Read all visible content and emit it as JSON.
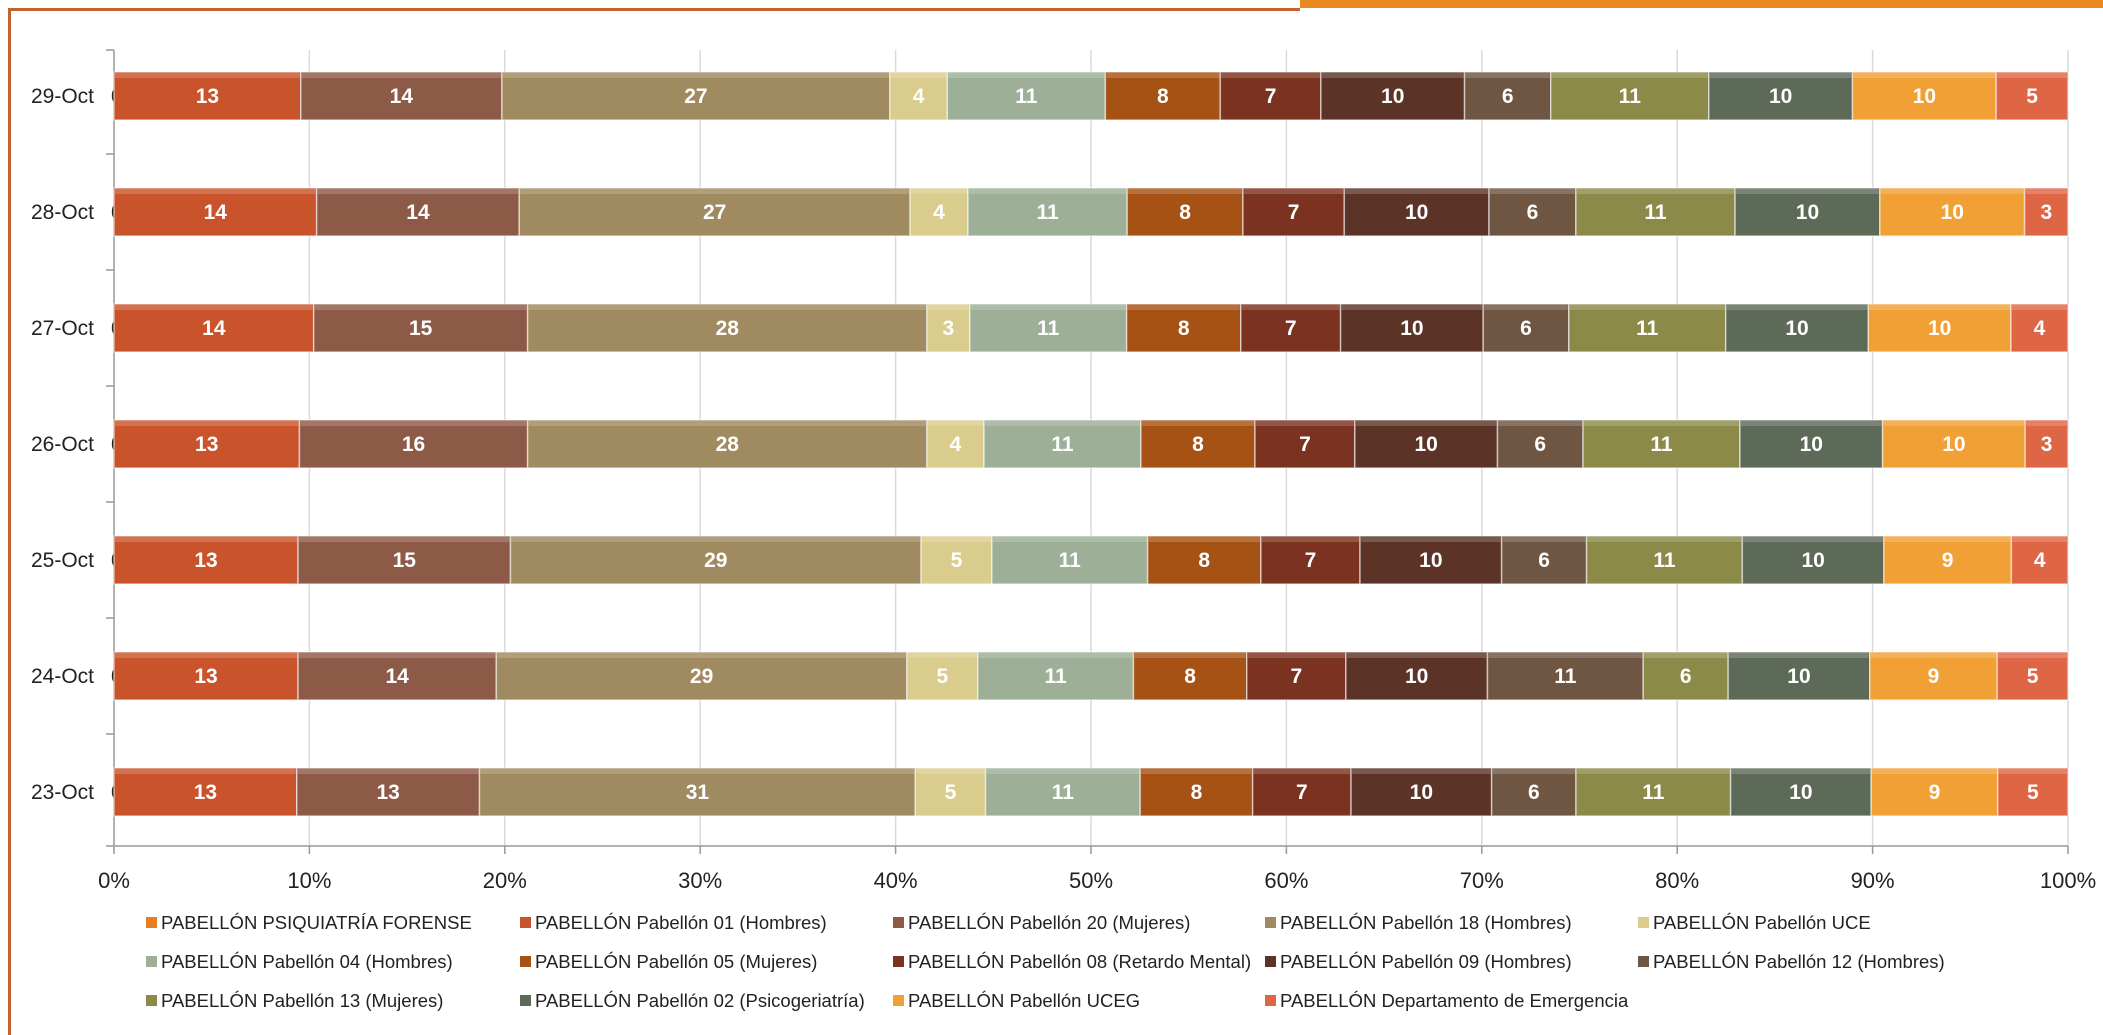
{
  "chart_data": {
    "type": "bar",
    "orientation": "horizontal",
    "stacked": "percent",
    "categories": [
      "29-Oct",
      "28-Oct",
      "27-Oct",
      "26-Oct",
      "25-Oct",
      "24-Oct",
      "23-Oct"
    ],
    "x_ticks": [
      "0%",
      "10%",
      "20%",
      "30%",
      "40%",
      "50%",
      "60%",
      "70%",
      "80%",
      "90%",
      "100%"
    ],
    "xlim": [
      0,
      100
    ],
    "grid": true,
    "legend_position": "bottom",
    "series": [
      {
        "name": "PABELLÓN PSIQUIATRÍA FORENSE",
        "color": "#e97d24",
        "values": [
          0,
          0,
          0,
          0,
          0,
          0,
          0
        ]
      },
      {
        "name": "PABELLÓN Pabellón 01 (Hombres)",
        "color": "#c9532a",
        "values": [
          13,
          14,
          14,
          13,
          13,
          13,
          13
        ]
      },
      {
        "name": "PABELLÓN Pabellón 20 (Mujeres)",
        "color": "#8e5a48",
        "values": [
          14,
          14,
          15,
          16,
          15,
          14,
          13
        ]
      },
      {
        "name": "PABELLÓN Pabellón 18 (Hombres)",
        "color": "#a08a60",
        "values": [
          27,
          27,
          28,
          28,
          29,
          29,
          31
        ]
      },
      {
        "name": "PABELLÓN Pabellón UCE",
        "color": "#d9cc8c",
        "values": [
          4,
          4,
          3,
          4,
          5,
          5,
          5
        ]
      },
      {
        "name": "PABELLÓN Pabellón 04 (Hombres)",
        "color": "#9daf97",
        "values": [
          11,
          11,
          11,
          11,
          11,
          11,
          11
        ]
      },
      {
        "name": "PABELLÓN Pabellón 05 (Mujeres)",
        "color": "#a65214",
        "values": [
          8,
          8,
          8,
          8,
          8,
          8,
          8
        ]
      },
      {
        "name": "PABELLÓN Pabellón 08 (Retardo Mental)",
        "color": "#7c3220",
        "values": [
          7,
          7,
          7,
          7,
          7,
          7,
          7
        ]
      },
      {
        "name": "PABELLÓN Pabellón 09 (Hombres)",
        "color": "#5c3427",
        "values": [
          10,
          10,
          10,
          10,
          10,
          10,
          10
        ]
      },
      {
        "name": "PABELLÓN Pabellón 12 (Hombres)",
        "color": "#6e5642",
        "values": [
          6,
          6,
          6,
          6,
          6,
          11,
          6
        ]
      },
      {
        "name": "PABELLÓN Pabellón 13 (Mujeres)",
        "color": "#8c8a48",
        "values": [
          11,
          11,
          11,
          11,
          11,
          6,
          11
        ]
      },
      {
        "name": "PABELLÓN Pabellón 02 (Psicogeriatría)",
        "color": "#5e6a58",
        "values": [
          10,
          10,
          10,
          10,
          10,
          10,
          10
        ]
      },
      {
        "name": "PABELLÓN Pabellón UCEG",
        "color": "#f0a034",
        "values": [
          10,
          10,
          10,
          10,
          9,
          9,
          9
        ]
      },
      {
        "name": "PABELLÓN Departamento de Emergencia",
        "color": "#de6645",
        "values": [
          5,
          3,
          4,
          3,
          4,
          5,
          5
        ]
      }
    ]
  }
}
